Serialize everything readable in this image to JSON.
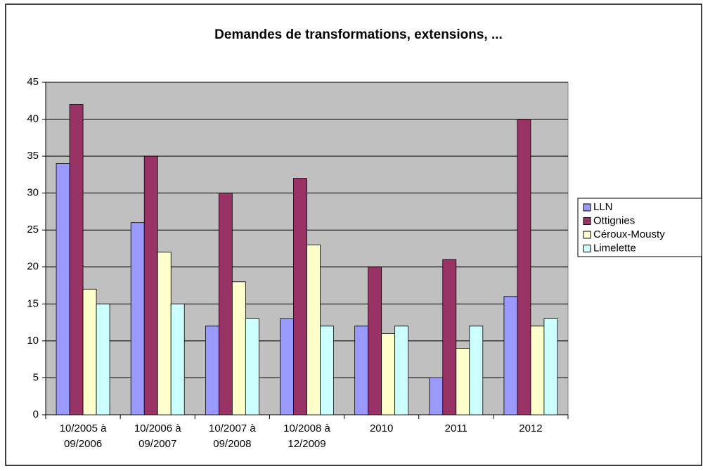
{
  "chart_data": {
    "type": "bar",
    "title": "Demandes de transformations, extensions, ...",
    "categories": [
      "10/2005 à\n09/2006",
      "10/2006 à\n09/2007",
      "10/2007 à\n09/2008",
      "10/2008 à\n12/2009",
      "2010",
      "2011",
      "2012"
    ],
    "series": [
      {
        "name": "LLN",
        "color": "#9999ff",
        "values": [
          34,
          26,
          12,
          13,
          12,
          5,
          16
        ]
      },
      {
        "name": "Ottignies",
        "color": "#993366",
        "values": [
          42,
          35,
          30,
          32,
          20,
          21,
          40
        ]
      },
      {
        "name": "Céroux-Mousty",
        "color": "#ffffcc",
        "values": [
          17,
          22,
          18,
          23,
          11,
          9,
          12
        ]
      },
      {
        "name": "Limelette",
        "color": "#ccffff",
        "values": [
          15,
          15,
          13,
          12,
          12,
          12,
          13
        ]
      }
    ],
    "ylim": [
      0,
      45
    ],
    "yticks": [
      0,
      5,
      10,
      15,
      20,
      25,
      30,
      35,
      40,
      45
    ],
    "grid": true,
    "legend": "right"
  }
}
